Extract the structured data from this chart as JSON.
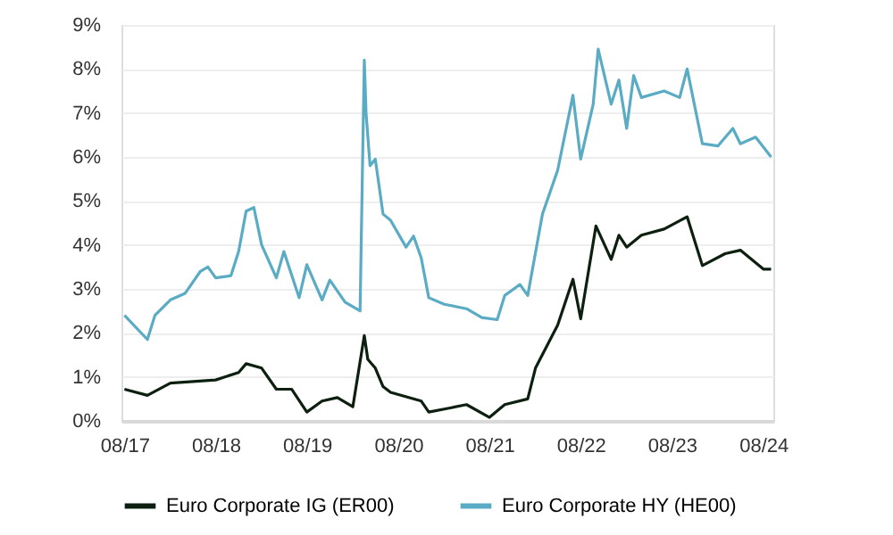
{
  "chart_data": {
    "type": "line",
    "series": [
      {
        "name": "Euro Corporate IG (ER00)",
        "color": "#0d2010",
        "x": [
          "2017-08",
          "2017-11",
          "2018-02",
          "2018-08",
          "2018-11",
          "2018-12",
          "2019-02",
          "2019-04",
          "2019-06",
          "2019-08",
          "2019-10",
          "2019-12",
          "2020-02",
          "2020-03-18",
          "2020-04",
          "2020-05",
          "2020-06",
          "2020-07",
          "2020-11",
          "2020-12",
          "2021-03",
          "2021-05",
          "2021-08",
          "2021-10",
          "2022-01",
          "2022-02",
          "2022-05",
          "2022-07",
          "2022-08",
          "2022-10",
          "2022-12",
          "2023-01",
          "2023-02",
          "2023-04",
          "2023-07",
          "2023-10",
          "2023-12",
          "2024-03",
          "2024-05",
          "2024-08",
          "2024-09"
        ],
        "values": [
          0.72,
          0.58,
          0.86,
          0.93,
          1.1,
          1.3,
          1.2,
          0.72,
          0.72,
          0.2,
          0.45,
          0.53,
          0.32,
          1.94,
          1.4,
          1.2,
          0.78,
          0.65,
          0.45,
          0.2,
          0.3,
          0.37,
          0.08,
          0.37,
          0.5,
          1.2,
          2.18,
          3.22,
          2.32,
          4.43,
          3.67,
          4.22,
          3.95,
          4.22,
          4.36,
          4.64,
          3.53,
          3.8,
          3.88,
          3.45,
          3.45
        ]
      },
      {
        "name": "Euro Corporate HY (HE00)",
        "color": "#5aabc4",
        "x": [
          "2017-08",
          "2017-11",
          "2017-12",
          "2018-02",
          "2018-04",
          "2018-06",
          "2018-07",
          "2018-08",
          "2018-10",
          "2018-11",
          "2018-12",
          "2019-01",
          "2019-02",
          "2019-04",
          "2019-05",
          "2019-07",
          "2019-08",
          "2019-10",
          "2019-11",
          "2020-01",
          "2020-03-01",
          "2020-03-18",
          "2020-03-25",
          "2020-04-10",
          "2020-05",
          "2020-06",
          "2020-07",
          "2020-09",
          "2020-10",
          "2020-11",
          "2020-12",
          "2021-02",
          "2021-05",
          "2021-07",
          "2021-09",
          "2021-10",
          "2021-12",
          "2022-01",
          "2022-03",
          "2022-05",
          "2022-07",
          "2022-08",
          "2022-09-20",
          "2022-10-10",
          "2022-12",
          "2023-01",
          "2023-02",
          "2023-03",
          "2023-04",
          "2023-07",
          "2023-09",
          "2023-10",
          "2023-12",
          "2024-02",
          "2024-04",
          "2024-05",
          "2024-07",
          "2024-09"
        ],
        "values": [
          2.4,
          1.85,
          2.4,
          2.75,
          2.9,
          3.4,
          3.5,
          3.25,
          3.3,
          3.85,
          4.77,
          4.85,
          4.0,
          3.25,
          3.85,
          2.8,
          3.55,
          2.75,
          3.2,
          2.7,
          2.5,
          8.2,
          7.0,
          5.8,
          5.95,
          4.7,
          4.56,
          3.95,
          4.2,
          3.7,
          2.8,
          2.65,
          2.55,
          2.35,
          2.3,
          2.85,
          3.1,
          2.85,
          4.7,
          5.7,
          7.4,
          5.95,
          7.2,
          8.45,
          7.2,
          7.75,
          6.65,
          7.85,
          7.35,
          7.5,
          7.35,
          8.0,
          6.3,
          6.25,
          6.65,
          6.3,
          6.45,
          6.0
        ]
      }
    ],
    "xlim": [
      "2017-07-20",
      "2024-09-10"
    ],
    "xticks": [
      {
        "value": "2017-08",
        "label": "08/17"
      },
      {
        "value": "2018-08",
        "label": "08/18"
      },
      {
        "value": "2019-08",
        "label": "08/19"
      },
      {
        "value": "2020-08",
        "label": "08/20"
      },
      {
        "value": "2021-08",
        "label": "08/21"
      },
      {
        "value": "2022-08",
        "label": "08/22"
      },
      {
        "value": "2023-08",
        "label": "08/23"
      },
      {
        "value": "2024-08",
        "label": "08/24"
      }
    ],
    "ylim": [
      0,
      9
    ],
    "yticks": [
      {
        "value": 0,
        "label": "0%"
      },
      {
        "value": 1,
        "label": "1%"
      },
      {
        "value": 2,
        "label": "2%"
      },
      {
        "value": 3,
        "label": "3%"
      },
      {
        "value": 4,
        "label": "4%"
      },
      {
        "value": 5,
        "label": "5%"
      },
      {
        "value": 6,
        "label": "6%"
      },
      {
        "value": 7,
        "label": "7%"
      },
      {
        "value": 8,
        "label": "8%"
      },
      {
        "value": 9,
        "label": "9%"
      }
    ],
    "grid": "y",
    "legend": "bottom",
    "marker": "none",
    "line_style": "solid"
  }
}
